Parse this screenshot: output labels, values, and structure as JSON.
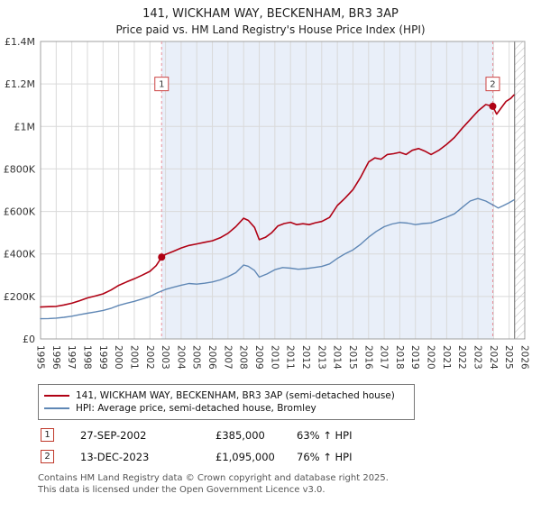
{
  "title": "141, WICKHAM WAY, BECKENHAM, BR3 3AP",
  "subtitle": "Price paid vs. HM Land Registry's House Price Index (HPI)",
  "chart_data": {
    "type": "line",
    "x_range": [
      1995,
      2026
    ],
    "y_range": [
      0,
      1400000
    ],
    "x_ticks": [
      1995,
      1996,
      1997,
      1998,
      1999,
      2000,
      2001,
      2002,
      2003,
      2004,
      2005,
      2006,
      2007,
      2008,
      2009,
      2010,
      2011,
      2012,
      2013,
      2014,
      2015,
      2016,
      2017,
      2018,
      2019,
      2020,
      2021,
      2022,
      2023,
      2024,
      2025,
      2026
    ],
    "y_tick_values": [
      0,
      200000,
      400000,
      600000,
      800000,
      1000000,
      1200000,
      1400000
    ],
    "y_tick_labels": [
      "£0",
      "£200K",
      "£400K",
      "£600K",
      "£800K",
      "£1M",
      "£1.2M",
      "£1.4M"
    ],
    "grid": true,
    "legend_position": "bottom",
    "colors": {
      "property": "#b00114",
      "hpi": "#5f87b5",
      "shade": "#e9eff9",
      "grid": "#d9d9d9",
      "frame": "#a0a0a0",
      "dashed": "#e8909c",
      "hatch": "#b8b8b8",
      "hatch_edge": "#666666",
      "flag_border": "#cc4444",
      "text": "#333333"
    },
    "series": [
      {
        "name": "141, WICKHAM WAY, BECKENHAM, BR3 3AP (semi-detached house)",
        "color": "#b00114",
        "points": [
          [
            1995.0,
            150000
          ],
          [
            1995.5,
            152000
          ],
          [
            1996.0,
            153000
          ],
          [
            1996.5,
            160000
          ],
          [
            1997.0,
            168000
          ],
          [
            1997.5,
            180000
          ],
          [
            1998.0,
            193000
          ],
          [
            1998.5,
            202000
          ],
          [
            1999.0,
            212000
          ],
          [
            1999.5,
            230000
          ],
          [
            2000.0,
            252000
          ],
          [
            2000.5,
            268000
          ],
          [
            2001.0,
            283000
          ],
          [
            2001.5,
            300000
          ],
          [
            2002.0,
            318000
          ],
          [
            2002.4,
            345000
          ],
          [
            2002.75,
            385000
          ],
          [
            2003.0,
            398000
          ],
          [
            2003.5,
            412000
          ],
          [
            2004.0,
            428000
          ],
          [
            2004.5,
            440000
          ],
          [
            2005.0,
            447000
          ],
          [
            2005.5,
            455000
          ],
          [
            2006.0,
            462000
          ],
          [
            2006.5,
            476000
          ],
          [
            2007.0,
            497000
          ],
          [
            2007.5,
            528000
          ],
          [
            2008.0,
            568000
          ],
          [
            2008.3,
            558000
          ],
          [
            2008.7,
            525000
          ],
          [
            2009.0,
            467000
          ],
          [
            2009.4,
            478000
          ],
          [
            2009.8,
            500000
          ],
          [
            2010.2,
            532000
          ],
          [
            2010.6,
            543000
          ],
          [
            2011.0,
            549000
          ],
          [
            2011.4,
            538000
          ],
          [
            2011.8,
            542000
          ],
          [
            2012.2,
            538000
          ],
          [
            2012.6,
            547000
          ],
          [
            2013.0,
            553000
          ],
          [
            2013.5,
            572000
          ],
          [
            2014.0,
            628000
          ],
          [
            2014.5,
            663000
          ],
          [
            2015.0,
            703000
          ],
          [
            2015.5,
            762000
          ],
          [
            2016.0,
            833000
          ],
          [
            2016.4,
            852000
          ],
          [
            2016.8,
            846000
          ],
          [
            2017.2,
            868000
          ],
          [
            2017.6,
            872000
          ],
          [
            2018.0,
            878000
          ],
          [
            2018.4,
            868000
          ],
          [
            2018.8,
            888000
          ],
          [
            2019.2,
            896000
          ],
          [
            2019.6,
            884000
          ],
          [
            2020.0,
            868000
          ],
          [
            2020.5,
            888000
          ],
          [
            2021.0,
            916000
          ],
          [
            2021.5,
            948000
          ],
          [
            2022.0,
            992000
          ],
          [
            2022.5,
            1032000
          ],
          [
            2023.0,
            1072000
          ],
          [
            2023.5,
            1103000
          ],
          [
            2023.95,
            1095000
          ],
          [
            2024.2,
            1058000
          ],
          [
            2024.5,
            1088000
          ],
          [
            2024.8,
            1118000
          ],
          [
            2025.1,
            1132000
          ],
          [
            2025.3,
            1148000
          ]
        ]
      },
      {
        "name": "HPI: Average price, semi-detached house, Bromley",
        "color": "#5f87b5",
        "points": [
          [
            1995.0,
            95000
          ],
          [
            1995.5,
            96000
          ],
          [
            1996.0,
            98000
          ],
          [
            1996.5,
            102000
          ],
          [
            1997.0,
            107000
          ],
          [
            1997.5,
            114000
          ],
          [
            1998.0,
            121000
          ],
          [
            1998.5,
            127000
          ],
          [
            1999.0,
            134000
          ],
          [
            1999.5,
            144000
          ],
          [
            2000.0,
            158000
          ],
          [
            2000.5,
            168000
          ],
          [
            2001.0,
            177000
          ],
          [
            2001.5,
            188000
          ],
          [
            2002.0,
            200000
          ],
          [
            2002.5,
            218000
          ],
          [
            2003.0,
            233000
          ],
          [
            2003.5,
            243000
          ],
          [
            2004.0,
            253000
          ],
          [
            2004.5,
            261000
          ],
          [
            2005.0,
            258000
          ],
          [
            2005.5,
            262000
          ],
          [
            2006.0,
            268000
          ],
          [
            2006.5,
            278000
          ],
          [
            2007.0,
            293000
          ],
          [
            2007.5,
            312000
          ],
          [
            2008.0,
            348000
          ],
          [
            2008.3,
            342000
          ],
          [
            2008.7,
            322000
          ],
          [
            2009.0,
            291000
          ],
          [
            2009.5,
            306000
          ],
          [
            2010.0,
            326000
          ],
          [
            2010.5,
            336000
          ],
          [
            2011.0,
            333000
          ],
          [
            2011.5,
            328000
          ],
          [
            2012.0,
            331000
          ],
          [
            2012.5,
            336000
          ],
          [
            2013.0,
            341000
          ],
          [
            2013.5,
            353000
          ],
          [
            2014.0,
            379000
          ],
          [
            2014.5,
            401000
          ],
          [
            2015.0,
            419000
          ],
          [
            2015.5,
            446000
          ],
          [
            2016.0,
            479000
          ],
          [
            2016.5,
            506000
          ],
          [
            2017.0,
            528000
          ],
          [
            2017.5,
            541000
          ],
          [
            2018.0,
            548000
          ],
          [
            2018.5,
            545000
          ],
          [
            2019.0,
            538000
          ],
          [
            2019.5,
            543000
          ],
          [
            2020.0,
            546000
          ],
          [
            2020.5,
            559000
          ],
          [
            2021.0,
            573000
          ],
          [
            2021.5,
            589000
          ],
          [
            2022.0,
            619000
          ],
          [
            2022.5,
            649000
          ],
          [
            2023.0,
            661000
          ],
          [
            2023.5,
            649000
          ],
          [
            2024.0,
            629000
          ],
          [
            2024.3,
            616000
          ],
          [
            2024.6,
            626000
          ],
          [
            2025.0,
            641000
          ],
          [
            2025.3,
            654000
          ]
        ]
      }
    ],
    "markers": [
      {
        "label": "1",
        "x": 2002.75,
        "y": 385000,
        "flag_y": 1200000
      },
      {
        "label": "2",
        "x": 2023.95,
        "y": 1095000,
        "flag_y": 1200000
      }
    ],
    "shaded_region": [
      2002.75,
      2023.95
    ],
    "hatch_region": [
      2025.35,
      2026
    ]
  },
  "transactions": [
    {
      "num": "1",
      "date": "27-SEP-2002",
      "price": "£385,000",
      "hpi": "63% ↑ HPI"
    },
    {
      "num": "2",
      "date": "13-DEC-2023",
      "price": "£1,095,000",
      "hpi": "76% ↑ HPI"
    }
  ],
  "footer": {
    "line1": "Contains HM Land Registry data © Crown copyright and database right 2025.",
    "line2": "This data is licensed under the Open Government Licence v3.0."
  }
}
